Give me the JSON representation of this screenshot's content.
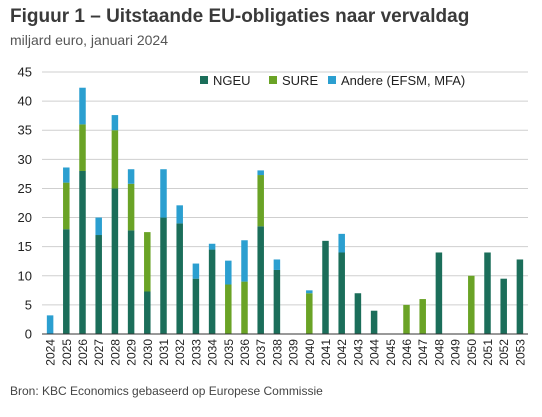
{
  "header": {
    "title": "Figuur 1 – Uitstaande EU-obligaties naar vervaldag",
    "subtitle": "miljard euro, januari 2024"
  },
  "footer": {
    "source": "Bron: KBC Economics gebaseerd op Europese Commissie"
  },
  "colors": {
    "NGEU": "#1b6e5a",
    "SURE": "#6aa326",
    "Andere": "#2b9fd0",
    "grid": "#cfcfcf",
    "axis": "#333333"
  },
  "chart_data": {
    "type": "bar",
    "stacked": true,
    "title": "",
    "xlabel": "",
    "ylabel": "",
    "ylim": [
      0,
      45
    ],
    "yticks": [
      0,
      5,
      10,
      15,
      20,
      25,
      30,
      35,
      40,
      45
    ],
    "grid": true,
    "legend_position": "top-right",
    "categories": [
      "2024",
      "2025",
      "2026",
      "2027",
      "2028",
      "2029",
      "2030",
      "2031",
      "2032",
      "2033",
      "2034",
      "2035",
      "2036",
      "2037",
      "2038",
      "2039",
      "2040",
      "2041",
      "2042",
      "2043",
      "2044",
      "2045",
      "2046",
      "2047",
      "2048",
      "2049",
      "2050",
      "2051",
      "2052",
      "2053"
    ],
    "series": [
      {
        "name": "NGEU",
        "values": [
          0,
          18,
          28,
          17,
          25,
          17.8,
          7.3,
          20,
          19,
          9.5,
          14.5,
          0,
          0,
          18.5,
          11,
          0,
          0,
          16,
          14,
          7,
          4,
          0,
          0,
          0,
          14,
          0,
          0,
          14,
          9.5,
          12.8
        ]
      },
      {
        "name": "SURE",
        "values": [
          0,
          8,
          8,
          0,
          10,
          8,
          10.2,
          0,
          0,
          0,
          0,
          8.5,
          9,
          8.8,
          0,
          0,
          7,
          0,
          0,
          0,
          0,
          0,
          5,
          6,
          0,
          0,
          10,
          0,
          0,
          0
        ]
      },
      {
        "name": "Andere (EFSM, MFA)",
        "values": [
          3.2,
          2.6,
          6.3,
          3,
          2.6,
          2.5,
          0,
          8.3,
          3.1,
          2.6,
          1,
          4.1,
          7.1,
          0.8,
          1.8,
          0,
          0.5,
          0,
          3.2,
          0,
          0,
          0,
          0,
          0,
          0,
          0,
          0,
          0,
          0,
          0
        ]
      }
    ]
  }
}
